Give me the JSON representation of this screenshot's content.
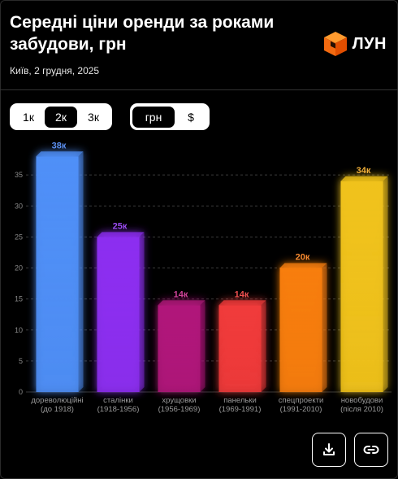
{
  "header": {
    "title": "Середні ціни оренди за роками забудови, грн",
    "subtitle": "Київ, 2 грудня, 2025",
    "logo_text": "ЛУН"
  },
  "room_filter": {
    "options": [
      "1к",
      "2к",
      "3к"
    ],
    "selected": "2к"
  },
  "currency_filter": {
    "options": [
      "грн",
      "$"
    ],
    "selected": "грн"
  },
  "actions": {
    "download_icon": "download-icon",
    "link_icon": "link-icon"
  },
  "chart_data": {
    "type": "bar",
    "categories": [
      [
        "дореволюційні",
        "(до 1918)"
      ],
      [
        "сталінки",
        "(1918-1956)"
      ],
      [
        "хрущовки",
        "(1956-1969)"
      ],
      [
        "панельки",
        "(1969-1991)"
      ],
      [
        "спецпроекти",
        "(1991-2010)"
      ],
      [
        "новобудови",
        "(після 2010)"
      ]
    ],
    "values": [
      38,
      25,
      14,
      14,
      20,
      34
    ],
    "data_labels": [
      "38к",
      "25к",
      "14к",
      "14к",
      "20к",
      "34к"
    ],
    "colors": [
      "#4f8ff7",
      "#8c2ef0",
      "#b0157a",
      "#f03a3a",
      "#f77d0f",
      "#f0c21a"
    ],
    "label_colors": [
      "#5b8ff0",
      "#9a4cf0",
      "#d0449a",
      "#f05050",
      "#f78a30",
      "#f3b13a"
    ],
    "y_ticks": [
      0,
      5,
      10,
      15,
      20,
      25,
      30,
      35
    ],
    "ylim": [
      0,
      40
    ],
    "grid": true
  }
}
